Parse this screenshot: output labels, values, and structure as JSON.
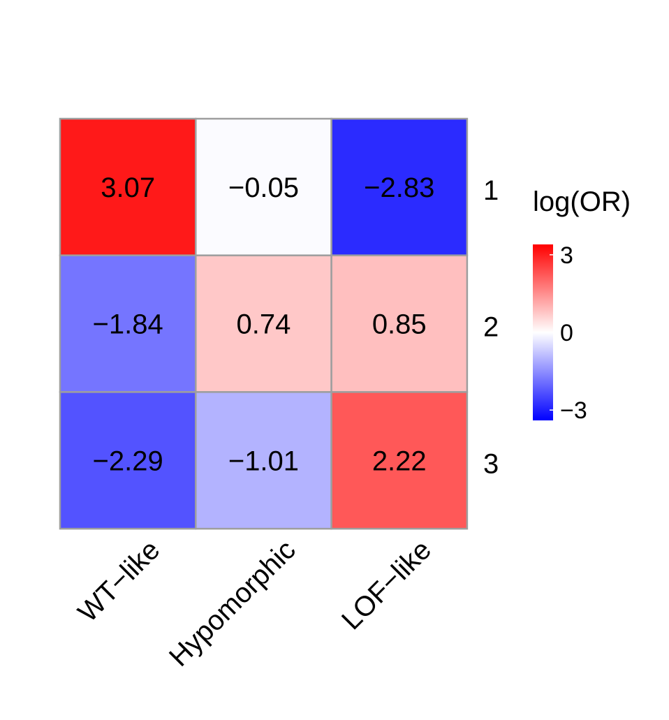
{
  "chart_data": {
    "type": "heatmap",
    "columns": [
      "WT−like",
      "Hypomorphic",
      "LOF−like"
    ],
    "rows": [
      "1",
      "2",
      "3"
    ],
    "values": [
      [
        3.07,
        -0.05,
        -2.83
      ],
      [
        -1.84,
        0.74,
        0.85
      ],
      [
        -2.29,
        -1.01,
        2.22
      ]
    ],
    "cell_labels": [
      [
        "3.07",
        "−0.05",
        "−2.83"
      ],
      [
        "−1.84",
        "0.74",
        "0.85"
      ],
      [
        "−2.29",
        "−1.01",
        "2.22"
      ]
    ],
    "legend": {
      "title": "log(OR)",
      "ticks": [
        {
          "value": 3,
          "label": "3"
        },
        {
          "value": 0,
          "label": "0"
        },
        {
          "value": -3,
          "label": "−3"
        }
      ],
      "range": [
        -3.4,
        3.4
      ],
      "colors": {
        "low": "#0000ff",
        "mid": "#ffffff",
        "high": "#ff0000"
      }
    },
    "grid_color": "#9e9e9e"
  }
}
